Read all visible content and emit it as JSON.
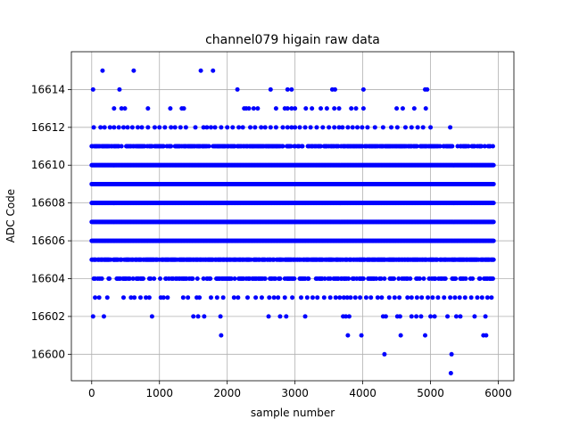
{
  "chart_data": {
    "type": "scatter",
    "title": "channel079 higain raw data",
    "xlabel": "sample number",
    "ylabel": "ADC Code",
    "xlim": [
      -300,
      6230
    ],
    "ylim": [
      16598.6,
      16616.0
    ],
    "x_ticks": [
      0,
      1000,
      2000,
      3000,
      4000,
      5000,
      6000
    ],
    "y_ticks": [
      16600,
      16602,
      16604,
      16606,
      16608,
      16610,
      16612,
      16614
    ],
    "x_tick_labels": [
      "0",
      "1000",
      "2000",
      "3000",
      "4000",
      "5000",
      "6000"
    ],
    "y_tick_labels": [
      "16600",
      "16602",
      "16604",
      "16606",
      "16608",
      "16610",
      "16612",
      "16614"
    ],
    "grid": true,
    "marker_color": "#0000ff",
    "x_range": [
      0,
      5930
    ],
    "series": [
      {
        "dense_levels": [
          16604,
          16605,
          16606,
          16607,
          16608,
          16609,
          16610,
          16611
        ],
        "level_density": {
          "16604": 0.35,
          "16605": 0.8,
          "16606": 1.0,
          "16607": 1.0,
          "16608": 1.0,
          "16609": 1.0,
          "16610": 1.0,
          "16611": 0.55
        },
        "sparse_points": {
          "16599": [
            5300
          ],
          "16600": [
            4320,
            5310
          ],
          "16601": [
            1910,
            3780,
            3980,
            4560,
            4920,
            5780,
            5820
          ],
          "16602": [
            20,
            180,
            890,
            1500,
            1570,
            1660,
            1900,
            2610,
            2780,
            2870,
            3150,
            3710,
            3750,
            3800,
            4300,
            4340,
            4510,
            4550,
            4720,
            4790,
            4860,
            5000,
            5060,
            5250,
            5380,
            5440,
            5650,
            5810
          ],
          "16603": [
            50,
            110,
            230,
            470,
            580,
            630,
            720,
            800,
            850,
            1020,
            1060,
            1120,
            1350,
            1420,
            1550,
            1590,
            1760,
            1850,
            1940,
            2100,
            2160,
            2300,
            2420,
            2510,
            2620,
            2690,
            2750,
            2850,
            2960,
            3090,
            3180,
            3260,
            3330,
            3430,
            3520,
            3600,
            3660,
            3720,
            3770,
            3820,
            3890,
            3960,
            4050,
            4120,
            4220,
            4280,
            4390,
            4470,
            4540,
            4660,
            4720,
            4800,
            4870,
            4960,
            5030,
            5110,
            5200,
            5290,
            5360,
            5430,
            5510,
            5600,
            5690,
            5760,
            5840,
            5900
          ],
          "16612": [
            30,
            130,
            190,
            270,
            330,
            400,
            470,
            530,
            600,
            680,
            740,
            830,
            930,
            1000,
            1080,
            1170,
            1230,
            1310,
            1390,
            1530,
            1650,
            1700,
            1760,
            1820,
            1910,
            2000,
            2080,
            2170,
            2230,
            2340,
            2410,
            2500,
            2560,
            2640,
            2720,
            2820,
            2890,
            2950,
            3000,
            3070,
            3150,
            3230,
            3320,
            3410,
            3500,
            3580,
            3650,
            3700,
            3780,
            3850,
            3920,
            3990,
            4070,
            4180,
            4300,
            4420,
            4510,
            4630,
            4720,
            4810,
            4890,
            5000,
            5290
          ],
          "16613": [
            330,
            440,
            490,
            830,
            1160,
            1330,
            1360,
            2250,
            2280,
            2320,
            2390,
            2450,
            2720,
            2850,
            2890,
            2950,
            3000,
            3160,
            3250,
            3380,
            3470,
            3580,
            3650,
            3830,
            3900,
            4010,
            4500,
            4590,
            4760,
            4930
          ],
          "16614": [
            20,
            410,
            2150,
            2640,
            2890,
            2950,
            3550,
            3590,
            4010,
            4920,
            4950
          ],
          "16615": [
            160,
            620,
            1610,
            1790
          ]
        }
      }
    ]
  }
}
